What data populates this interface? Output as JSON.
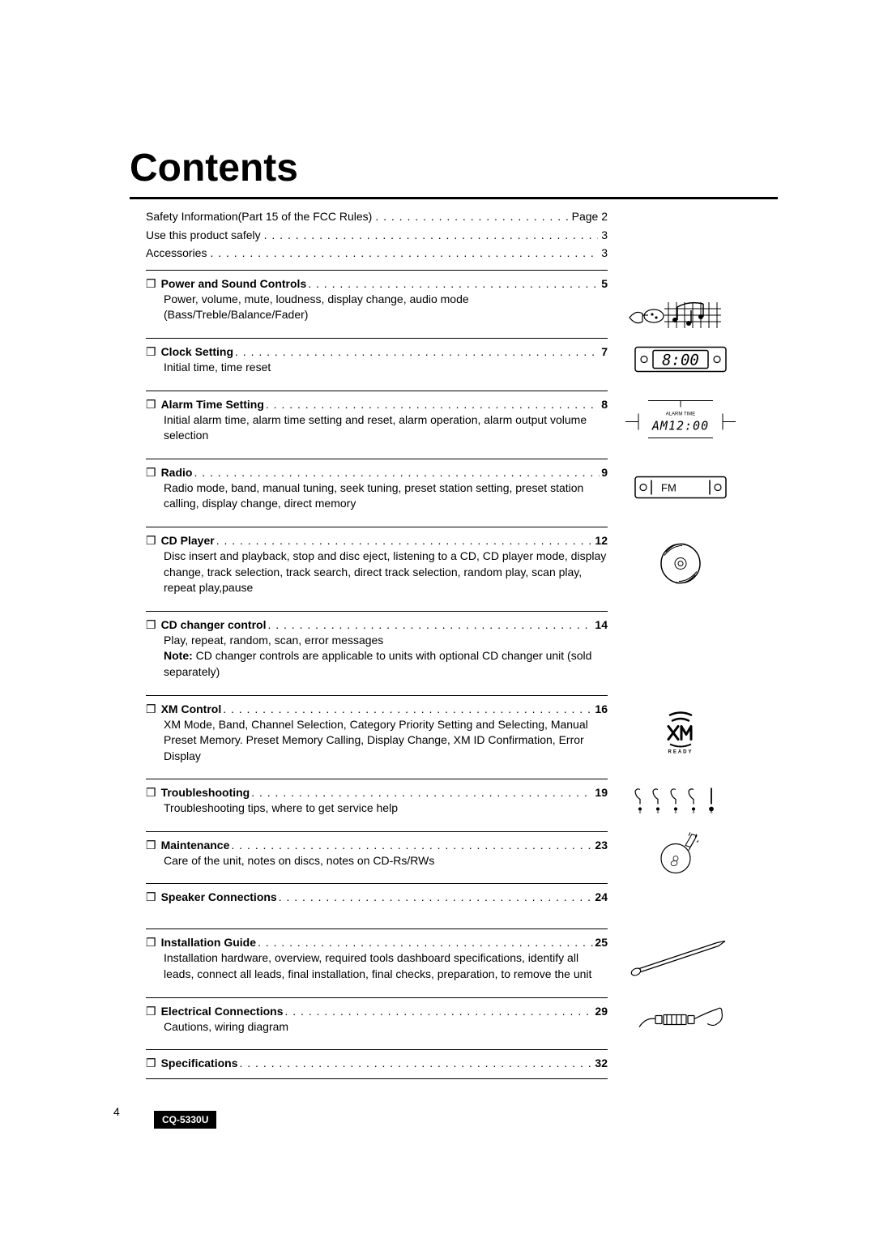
{
  "title": "Contents",
  "preItems": [
    {
      "label": "Safety Information(Part 15 of the FCC Rules)",
      "page": "Page 2"
    },
    {
      "label": "Use this product safely",
      "page": "3"
    },
    {
      "label": "Accessories",
      "page": "3"
    }
  ],
  "sections": [
    {
      "title": "Power and Sound Controls",
      "page": "5",
      "desc": "Power, volume, mute, loudness, display change, audio mode (Bass/Treble/Balance/Fader)",
      "iconTop": -4,
      "icon": "<svg width='130' height='45' viewBox='0 0 130 45'><g fill='none' stroke='#000' stroke-width='1.2'><path d='M2 25 Q10 15 18 20 L18 30 Q10 35 2 25 Z'/><line x1='18' y1='22' x2='25' y2='22'/><ellipse cx='32' cy='23' rx='12' ry='8'/><circle cx='30' cy='21' r='1' fill='#000'/><circle cx='35' cy='25' r='1' fill='#000'/></g><g stroke='#000' stroke-width='1' fill='none'><line x1='50' y1='6' x2='50' y2='38'/><line x1='60' y1='6' x2='60' y2='38'/><line x1='70' y1='6' x2='70' y2='38'/><line x1='80' y1='6' x2='80' y2='38'/><line x1='90' y1='6' x2='90' y2='38'/><line x1='100' y1='6' x2='100' y2='38'/><line x1='110' y1='6' x2='110' y2='38'/><line x1='45' y1='14' x2='115' y2='14'/><line x1='45' y1='22' x2='115' y2='22'/><line x1='45' y1='30' x2='115' y2='30'/></g><g fill='#000'><circle cx='58' cy='28' r='3'/><path d='M61 28 L61 12' stroke='#000' stroke-width='1.5'/><circle cx='75' cy='32' r='3'/><path d='M78 32 L78 16' stroke='#000' stroke-width='1.5'/><circle cx='90' cy='24' r='3'/><path d='M93 24 L93 8' stroke='#000' stroke-width='1.5'/><path d='M61 12 Q75 4 93 8' stroke='#000' stroke-width='1.5' fill='none'/></g></svg>"
    },
    {
      "title": "Clock Setting",
      "page": "7",
      "desc": "Initial time, time reset",
      "icon": "<svg width='120' height='38' viewBox='0 0 120 38'><rect x='4' y='4' width='112' height='30' rx='3' fill='none' stroke='#000' stroke-width='1.5'/><circle cx='15' cy='19' r='4' fill='none' stroke='#000' stroke-width='1.2'/><circle cx='105' cy='19' r='4' fill='none' stroke='#000' stroke-width='1.2'/><rect x='26' y='8' width='68' height='22' rx='2' fill='none' stroke='#000' stroke-width='1.5'/><text x='60' y='26' text-anchor='middle' font-family='monospace' font-size='19' fill='#000' font-style='italic'>8:00</text></svg>"
    },
    {
      "title": "Alarm Time Setting",
      "page": "8",
      "desc": "Initial alarm time, alarm time setting and reset, alarm operation, alarm output volume selection",
      "icon": "<svg width='140' height='50' viewBox='0 0 140 50'><line x1='30' y1='2' x2='110' y2='2' stroke='#000' stroke-width='1'/><line x1='30' y1='48' x2='110' y2='48' stroke='#000' stroke-width='1'/><line x1='70' y1='2' x2='70' y2='10' stroke='#000' stroke-width='1'/><line x1='2' y1='28' x2='18' y2='28' stroke='#000' stroke-width='1'/><line x1='122' y1='28' x2='138' y2='28' stroke='#000' stroke-width='1'/><line x1='18' y1='18' x2='18' y2='38' stroke='#000' stroke-width='1'/><line x1='122' y1='18' x2='122' y2='38' stroke='#000' stroke-width='1'/><text x='70' y='20' text-anchor='middle' font-size='6' fill='#000'>ALARM TIME</text><text x='70' y='38' text-anchor='middle' font-family='monospace' font-size='15' fill='#000' font-style='italic' letter-spacing='1'>AM12:00</text></svg>"
    },
    {
      "title": "Radio",
      "page": "9",
      "desc": "Radio mode, band, manual tuning, seek tuning, preset station setting, preset station calling, display change, direct memory",
      "icon": "<svg width='120' height='34' viewBox='0 0 120 34'><rect x='4' y='4' width='112' height='26' rx='3' fill='none' stroke='#000' stroke-width='1.5'/><circle cx='14' cy='17' r='4' fill='none' stroke='#000' stroke-width='1.2'/><circle cx='106' cy='17' r='4' fill='none' stroke='#000' stroke-width='1.2'/><line x1='24' y1='8' x2='24' y2='26' stroke='#000' stroke-width='1.5'/><line x1='96' y1='8' x2='96' y2='26' stroke='#000' stroke-width='1.5'/><text x='36' y='22' font-size='13' fill='#000'>FM</text></svg>"
    },
    {
      "title": "CD Player",
      "page": "12",
      "desc": "Disc insert and playback, stop and disc eject, listening to a CD, CD player mode, display change, track selection, track search, direct track selection, random play, scan play, repeat play,pause",
      "icon": "<svg width='56' height='56' viewBox='0 0 56 56'><circle cx='28' cy='28' r='24' fill='none' stroke='#000' stroke-width='1.5'/><circle cx='28' cy='28' r='7' fill='none' stroke='#000' stroke-width='1'/><circle cx='28' cy='28' r='3' fill='none' stroke='#000' stroke-width='1'/><path d='M8 18 Q18 6 30 6' stroke='#000' stroke-width='1' fill='none'/><path d='M48 38 Q38 50 26 50' stroke='#000' stroke-width='1' fill='none'/><path d='M10 14 Q20 2 34 4' stroke='#000' stroke-width='1' fill='none'/><path d='M46 42 Q36 54 22 52' stroke='#000' stroke-width='1' fill='none'/></svg>"
    },
    {
      "title": "CD changer control",
      "page": "14",
      "desc": "Play, repeat, random, scan, error messages",
      "note": "CD changer controls are applicable to units with optional CD changer unit (sold separately)",
      "noteLabel": "Note:"
    },
    {
      "title": "XM Control",
      "page": "16",
      "desc": "XM Mode, Band, Channel Selection, Category Priority Setting and Selecting, Manual Preset Memory. Preset Memory Calling, Display Change, XM ID Confirmation, Error Display",
      "icon": "<svg width='54' height='54' viewBox='0 0 54 54'><path d='M14 6 Q27 0 40 6' stroke='#000' stroke-width='2.5' fill='none' stroke-linecap='round'/><path d='M17 13 Q27 8 37 13' stroke='#000' stroke-width='2.5' fill='none' stroke-linecap='round'/><path d='M12 20 L24 36 M24 20 L12 36' stroke='#000' stroke-width='3' stroke-linecap='round'/><path d='M28 36 L28 20 L34 30 L40 20 L40 36' stroke='#000' stroke-width='3' fill='none' stroke-linecap='round' stroke-linejoin='round'/><path d='M14 42 Q27 48 40 42' stroke='#000' stroke-width='2' fill='none'/><text x='27' y='53' text-anchor='middle' font-size='6' fill='#000' letter-spacing='2' font-weight='bold'>READY</text></svg>"
    },
    {
      "title": "Troubleshooting",
      "page": "19",
      "desc": "Troubleshooting tips, where to get service help",
      "icon": "<svg width='120' height='38' viewBox='0 0 120 38'><g fill='none' stroke='#000' stroke-width='1.2'><path d='M10 6 Q6 4 4 8 Q4 14 10 18 Q10 22 10 24'/><circle cx='10' cy='30' r='1.5' fill='#000'/><path d='M32 6 Q28 4 26 8 Q26 14 32 18 Q32 22 32 24'/><circle cx='32' cy='30' r='1.5' fill='#000'/><path d='M54 6 Q50 4 48 8 Q48 14 54 18 Q54 22 54 24'/><circle cx='54' cy='30' r='1.5' fill='#000'/><path d='M76 6 Q72 4 70 8 Q70 14 76 18 Q76 22 76 24'/><circle cx='76' cy='30' r='1.5' fill='#000'/></g><g stroke='#000' stroke-width='1.8'><line x1='98' y1='4' x2='98' y2='24'/><circle cx='98' cy='30' r='2' fill='#000'/></g><g stroke='#000' stroke-width='0.5' fill='none'><circle cx='10' cy='34' r='1'/><circle cx='32' cy='34' r='1'/><circle cx='54' cy='34' r='1'/><circle cx='76' cy='34' r='1'/><circle cx='98' cy='34' r='1'/></g></svg>"
    },
    {
      "title": "Maintenance",
      "page": "23",
      "desc": "Care of the unit, notes on discs, notes on CD-Rs/RWs",
      "icon": "<svg width='60' height='54' viewBox='0 0 60 54'><circle cx='24' cy='34' r='18' fill='none' stroke='#000' stroke-width='1.2'/><circle cx='24' cy='34' r='3' fill='none' stroke='#000' stroke-width='0.8'/><ellipse cx='22' cy='40' rx='4' ry='3' fill='none' stroke='#000' stroke-width='0.8' transform='rotate(-20 22 40)'/><g stroke='#000' stroke-width='1' fill='none'><path d='M44 4 L36 18 L42 20 L50 6 Z'/><path d='M48 10 L40 24'/><line x1='42' y1='2' x2='40' y2='6'/><line x1='50' y1='4' x2='48' y2='8'/><line x1='52' y1='12' x2='50' y2='14'/></g></svg>"
    },
    {
      "title": "Speaker Connections",
      "page": "24",
      "desc": ""
    },
    {
      "title": "Installation Guide",
      "page": "25",
      "desc": "Installation hardware, overview, required tools dashboard specifications, identify all leads, connect all leads, final installation, final checks, preparation, to remove the unit",
      "icon": "<svg width='130' height='50' viewBox='0 0 130 50'><g stroke='#000' stroke-width='1.2' fill='none'><ellipse cx='10' cy='42' rx='6' ry='4' transform='rotate(-25 10 42)'/><line x1='14' y1='38' x2='110' y2='6'/><line x1='16' y1='42' x2='112' y2='10'/><path d='M110 6 L120 4 L112 10'/></g></svg>"
    },
    {
      "title": "Electrical Connections",
      "page": "29",
      "desc": "Cautions, wiring diagram",
      "icon": "<svg width='110' height='34' viewBox='0 0 110 34'><g stroke='#000' stroke-width='1.2' fill='none'><path d='M4 28 Q12 16 24 18'/><rect x='24' y='14' width='8' height='10' rx='1'/><rect x='34' y='13' width='28' height='12' rx='1'/><line x1='38' y1='13' x2='38' y2='25'/><line x1='44' y1='13' x2='44' y2='25'/><line x1='50' y1='13' x2='50' y2='25'/><line x1='56' y1='13' x2='56' y2='25'/><rect x='64' y='14' width='8' height='10' rx='1'/><path d='M72 18 Q88 10 100 6 Q106 2 106 10 Q108 20 100 24 Q96 28 88 24'/></g></svg>"
    },
    {
      "title": "Specifications",
      "page": "32",
      "desc": "",
      "last": true
    }
  ],
  "dotsFill": ". . . . . . . . . . . . . . . . . . . . . . . . . . . . . . . . . . . . . . . . . . . . . . . . . . . . . . . . . . . . . . . . . . . . . . . . . . . .",
  "pageNumber": "4",
  "modelNumber": "CQ-5330U",
  "bookmarkGlyph": "❒"
}
